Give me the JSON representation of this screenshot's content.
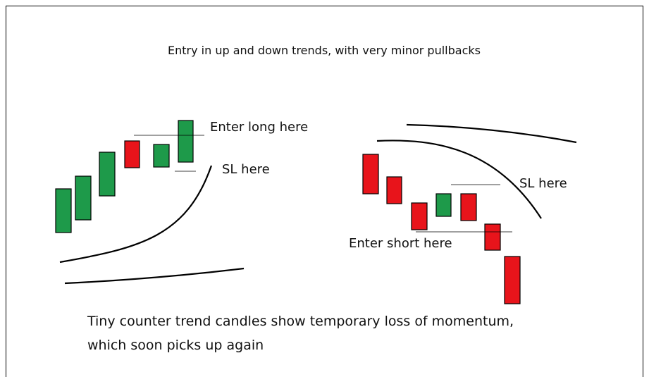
{
  "title": "Entry in up and down trends, with very minor pullbacks",
  "labels": {
    "enter_long": "Enter long here",
    "sl_long": "SL here",
    "sl_short": "SL here",
    "enter_short": "Enter short here"
  },
  "caption": [
    "Tiny counter trend candles show temporary loss of momentum,",
    "which soon picks up again"
  ]
}
